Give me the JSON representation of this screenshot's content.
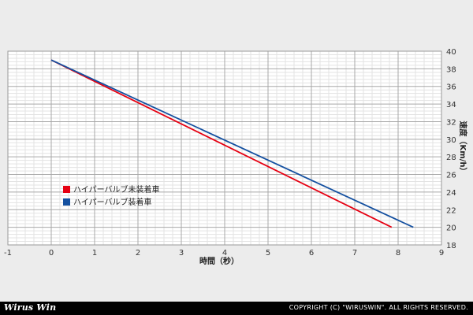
{
  "chart_data": {
    "type": "line",
    "title": "",
    "xlabel": "時間（秒）",
    "ylabel": "速度（Km/h）",
    "xlim": [
      -1,
      9
    ],
    "ylim": [
      18,
      40
    ],
    "xticks": [
      -1,
      0,
      1,
      2,
      3,
      4,
      5,
      6,
      7,
      8,
      9
    ],
    "yticks": [
      18,
      20,
      22,
      24,
      26,
      28,
      30,
      32,
      34,
      36,
      38,
      40
    ],
    "grid": true,
    "legend_position": "left-middle",
    "series": [
      {
        "name": "ハイパーバルブ未装着車",
        "color": "#e60012",
        "x": [
          0,
          7.85
        ],
        "y": [
          39,
          20
        ]
      },
      {
        "name": "ハイパーバルブ装着車",
        "color": "#1450a0",
        "x": [
          0,
          8.35
        ],
        "y": [
          39,
          20
        ]
      }
    ]
  },
  "footer": {
    "logo": "Wirus Win",
    "copyright": "COPYRIGHT (C) \"WIRUSWIN\". ALL RIGHTS RESERVED."
  }
}
